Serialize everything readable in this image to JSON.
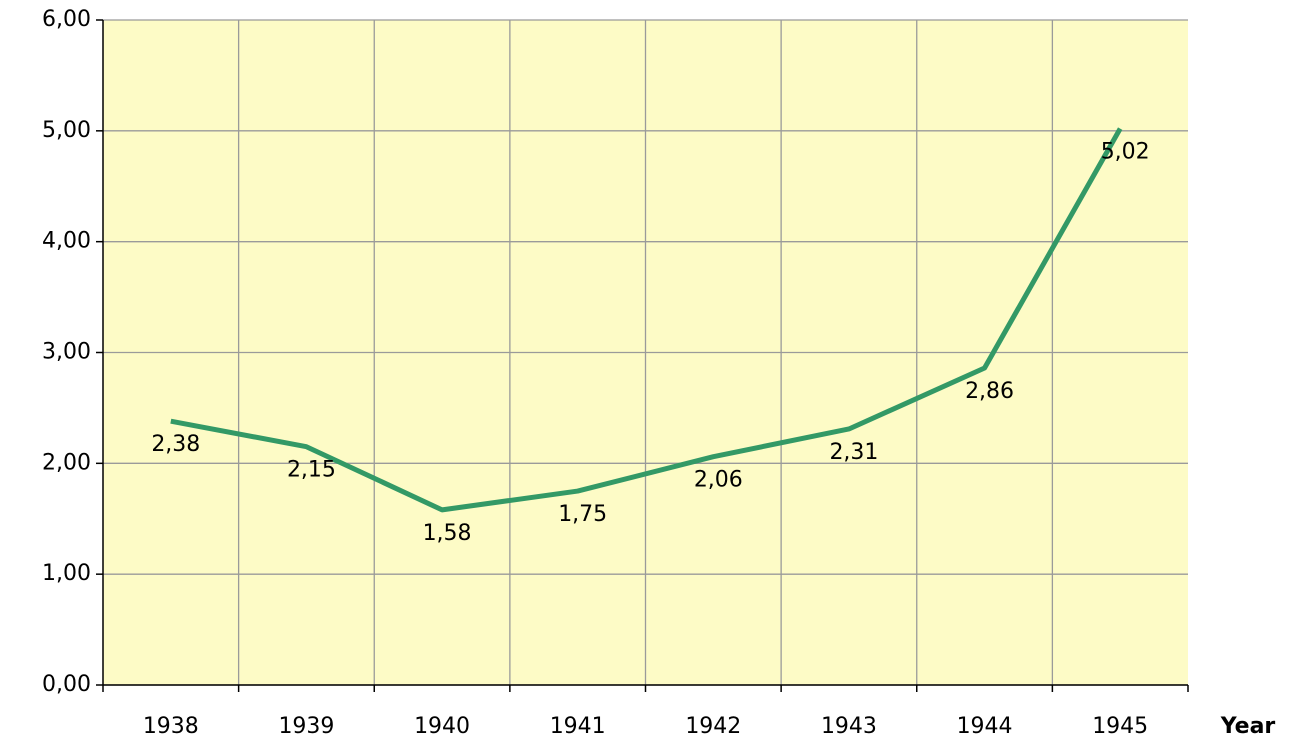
{
  "chart_data": {
    "type": "line",
    "x_label": "Year",
    "categories": [
      "1938",
      "1939",
      "1940",
      "1941",
      "1942",
      "1943",
      "1944",
      "1945"
    ],
    "series": [
      {
        "color": "#339966",
        "values": [
          2.38,
          2.15,
          1.58,
          1.75,
          2.06,
          2.31,
          2.86,
          5.02
        ],
        "value_labels": [
          "2,38",
          "2,15",
          "1,58",
          "1,75",
          "2,06",
          "2,31",
          "2,86",
          "5,02"
        ]
      }
    ],
    "ylim": [
      0,
      6
    ],
    "yticks": [
      {
        "value": 0,
        "label": "0,00"
      },
      {
        "value": 1,
        "label": "1,00"
      },
      {
        "value": 2,
        "label": "2,00"
      },
      {
        "value": 3,
        "label": "3,00"
      },
      {
        "value": 4,
        "label": "4,00"
      },
      {
        "value": 5,
        "label": "5,00"
      },
      {
        "value": 6,
        "label": "6,00"
      }
    ],
    "grid": true,
    "plot_background": "#fdfbc6"
  }
}
